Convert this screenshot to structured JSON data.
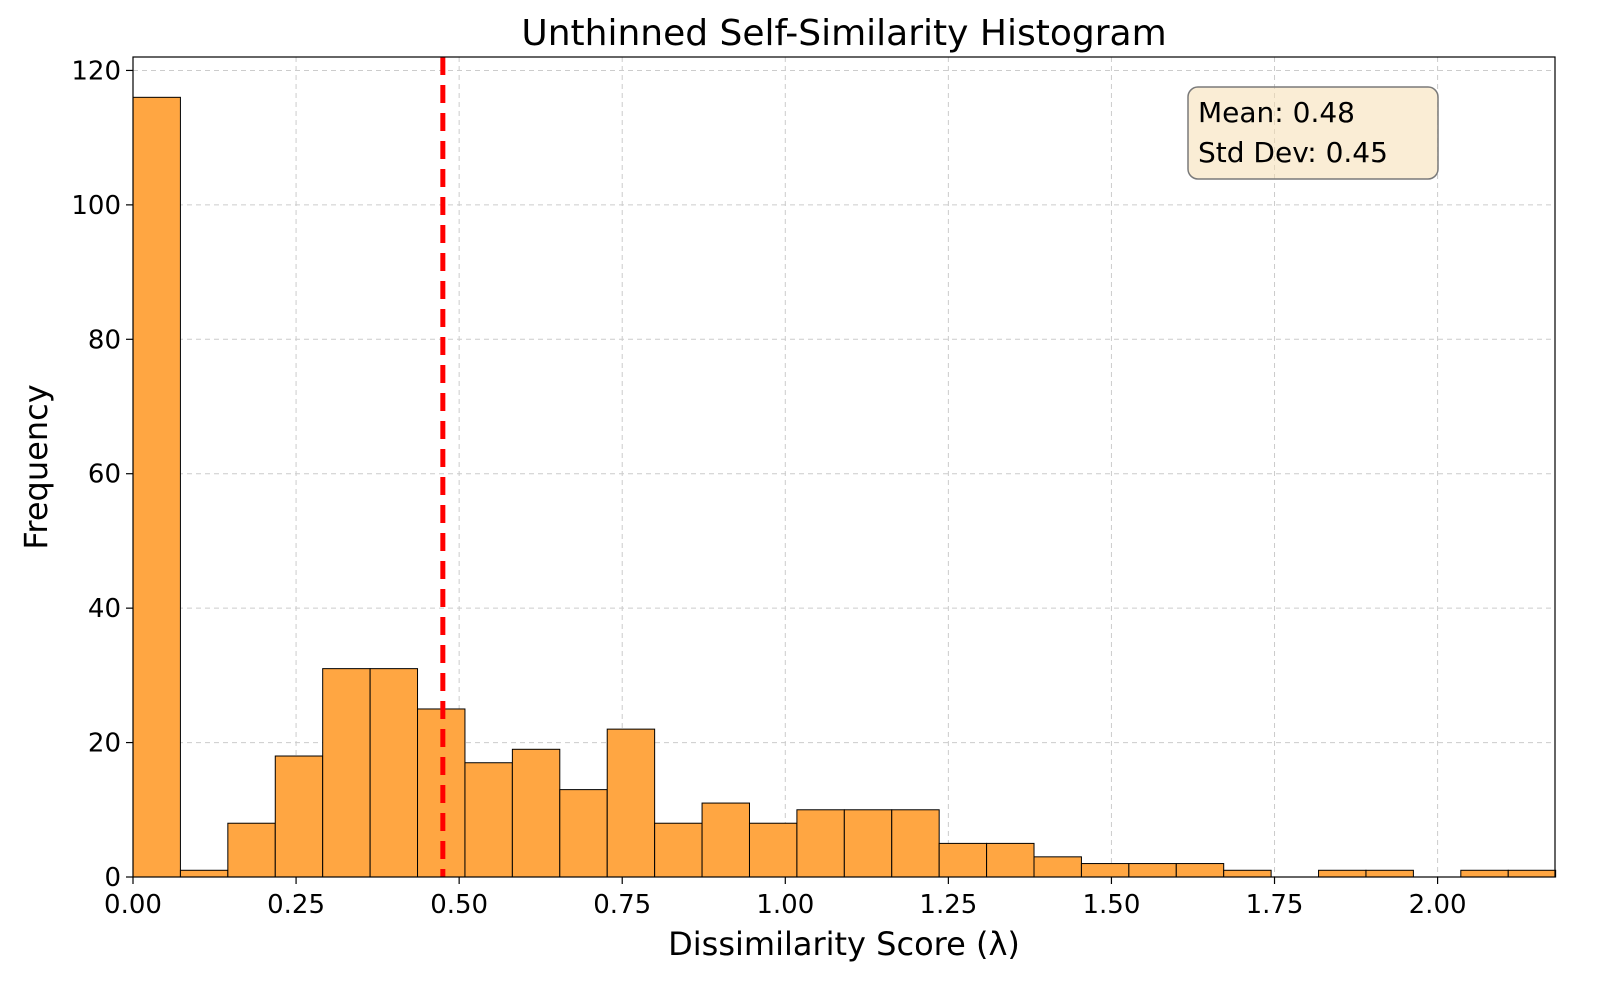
{
  "chart_data": {
    "type": "bar",
    "title": "Unthinned Self-Similarity Histogram",
    "xlabel": "Dissimilarity Score (λ)",
    "ylabel": "Frequency",
    "xlim": [
      0,
      2.18
    ],
    "ylim": [
      0,
      122
    ],
    "xticks": [
      "0.00",
      "0.25",
      "0.50",
      "0.75",
      "1.00",
      "1.25",
      "1.50",
      "1.75",
      "2.00"
    ],
    "yticks": [
      "0",
      "20",
      "40",
      "60",
      "80",
      "100",
      "120"
    ],
    "grid": true,
    "bar_color": "#ffa642",
    "bar_edge_color": "#000000",
    "bins": {
      "bin_start": 0.0,
      "bin_width": 0.0727,
      "counts": [
        116,
        1,
        8,
        18,
        31,
        31,
        25,
        17,
        19,
        13,
        22,
        8,
        11,
        8,
        10,
        10,
        10,
        5,
        5,
        3,
        2,
        2,
        2,
        1,
        0,
        1,
        1,
        0,
        1,
        1
      ]
    },
    "mean_line": {
      "x": 0.475,
      "color": "#ff0000",
      "style": "dashed"
    },
    "stats_box": {
      "lines": [
        "Mean: 0.48",
        "Std Dev: 0.45"
      ],
      "placement": "top-right",
      "background": "#f5deb3"
    }
  }
}
